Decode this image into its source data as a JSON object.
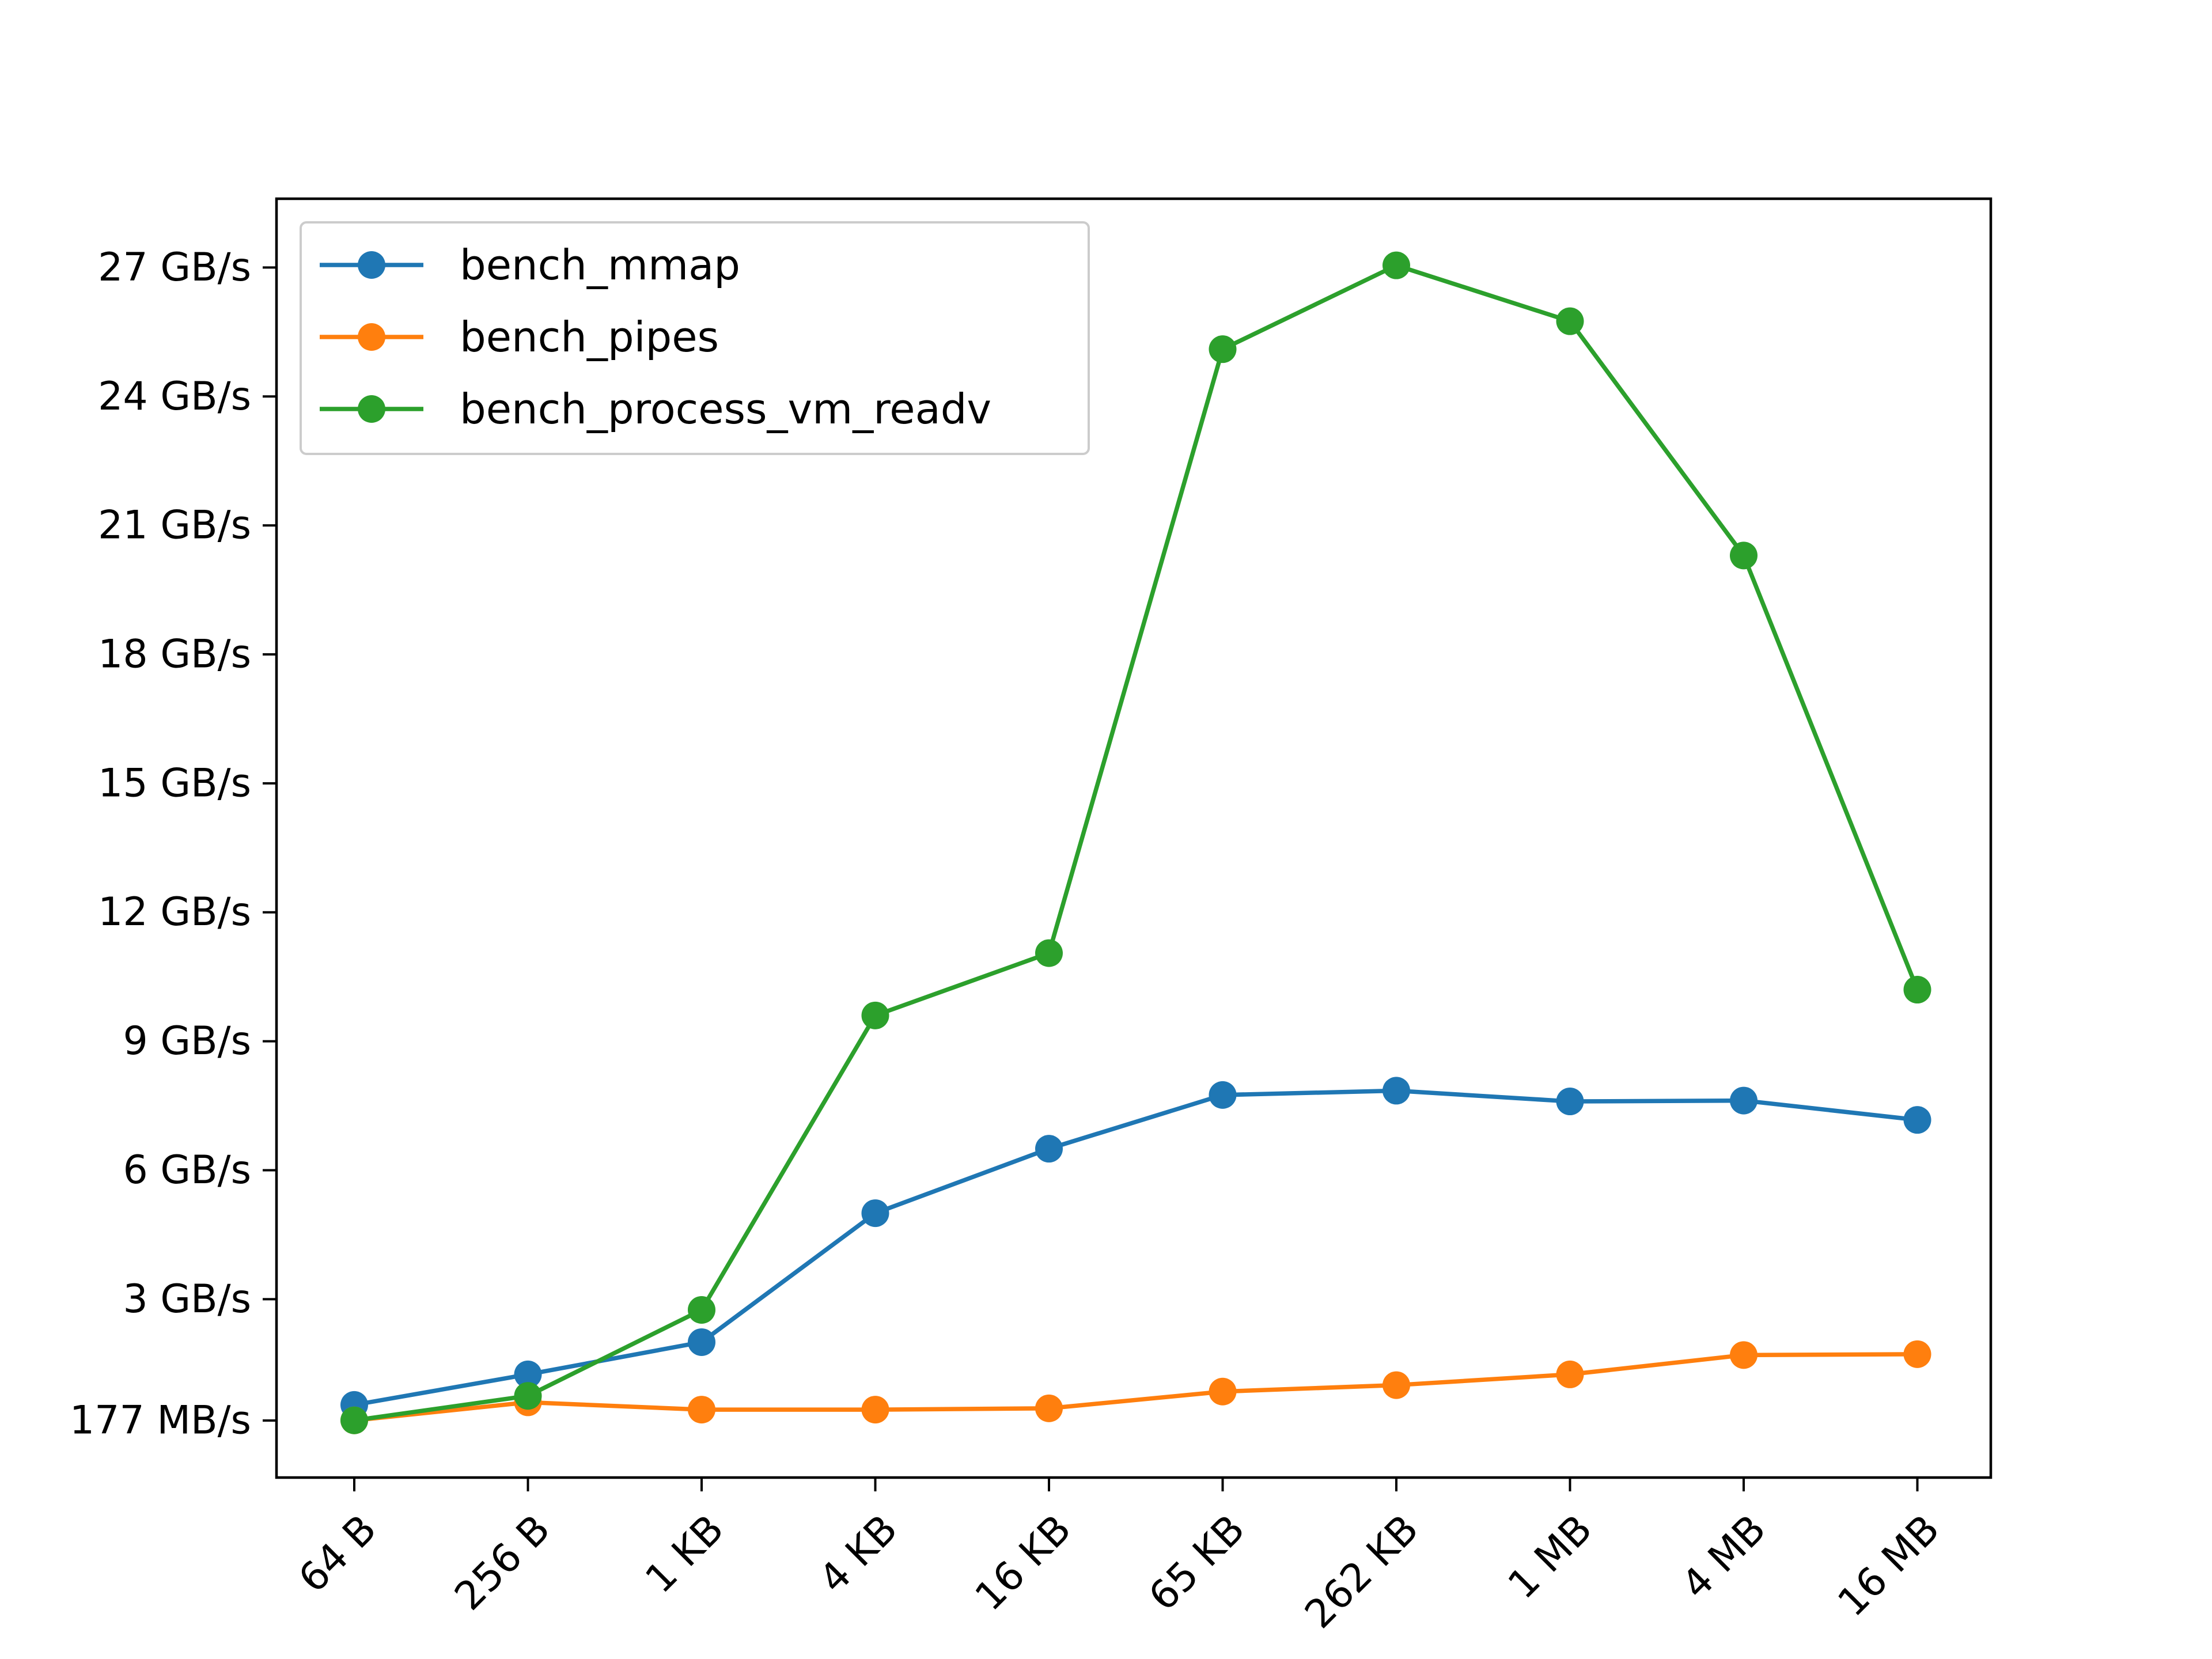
{
  "chart_data": {
    "type": "line",
    "title": "",
    "xlabel": "",
    "ylabel": "",
    "categories": [
      "64 B",
      "256 B",
      "1 KB",
      "4 KB",
      "16 KB",
      "65 KB",
      "262 KB",
      "1 MB",
      "4 MB",
      "16 MB"
    ],
    "y_tick_labels": [
      "177 MB/s",
      "3 GB/s",
      "6 GB/s",
      "9 GB/s",
      "12 GB/s",
      "15 GB/s",
      "18 GB/s",
      "21 GB/s",
      "24 GB/s",
      "27 GB/s"
    ],
    "y_tick_values": [
      0.177,
      3,
      6,
      9,
      12,
      15,
      18,
      21,
      24,
      27
    ],
    "ylim": [
      -1.15,
      28.6
    ],
    "unit": "GB/s",
    "grid": false,
    "legend_position": "top-left",
    "series": [
      {
        "name": "bench_mmap",
        "color": "#1f77b4",
        "values": [
          0.54,
          1.25,
          2.0,
          5.0,
          6.5,
          7.75,
          7.85,
          7.6,
          7.62,
          7.17
        ]
      },
      {
        "name": "bench_pipes",
        "color": "#ff7f0e",
        "values": [
          0.18,
          0.6,
          0.43,
          0.43,
          0.46,
          0.85,
          1.0,
          1.25,
          1.7,
          1.72
        ]
      },
      {
        "name": "bench_process_vm_readv",
        "color": "#2ca02c",
        "values": [
          0.18,
          0.75,
          2.75,
          9.6,
          11.05,
          25.1,
          27.05,
          25.75,
          20.3,
          10.2
        ]
      }
    ]
  }
}
